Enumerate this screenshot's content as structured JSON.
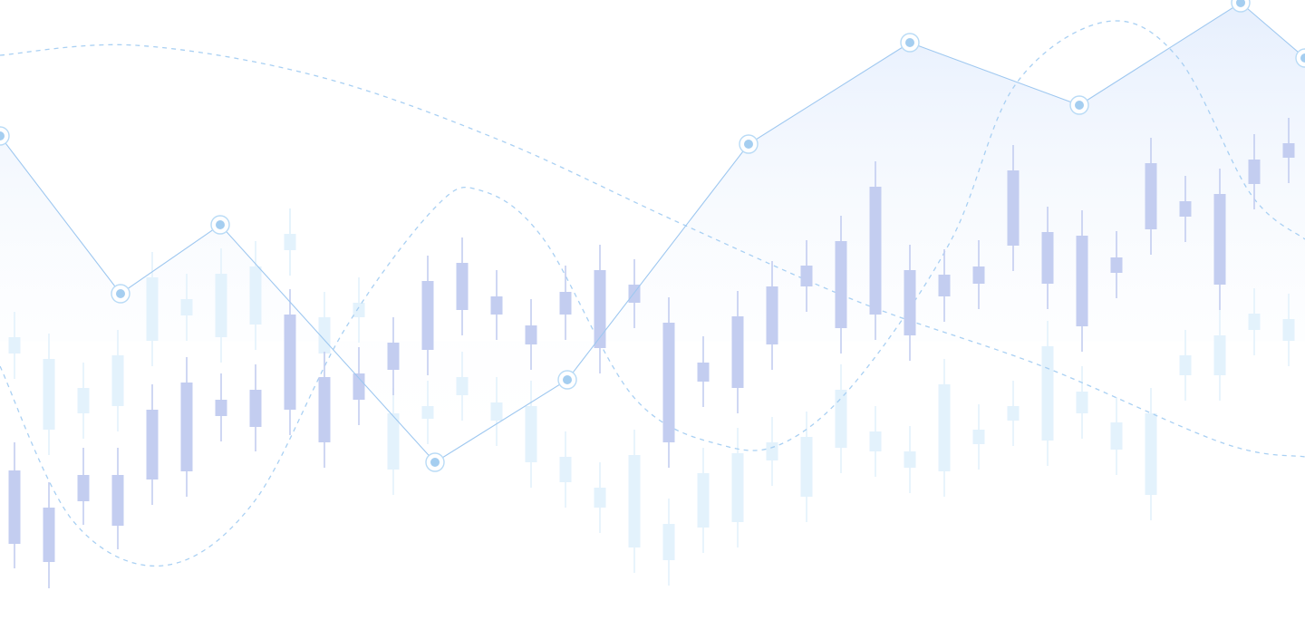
{
  "chart_data": {
    "type": "candlestick-line-composite",
    "title": "",
    "xlabel": "",
    "ylabel": "",
    "grid": false,
    "legend": "none",
    "colors": {
      "candle_primary": "#c3cdf0",
      "candle_secondary": "#e3f2fc",
      "line": "#9fc8f0",
      "area_top": "#e6effd",
      "dashed_curve": "#a9d0f3",
      "marker_fill": "#a5cef0",
      "marker_ring": "#b9dbf6"
    },
    "ylim": [
      0,
      684
    ],
    "line_series": {
      "x": [
        0,
        133,
        243,
        480,
        626,
        826,
        1004,
        1191,
        1369,
        1440
      ],
      "y": [
        534,
        360,
        436,
        174,
        265,
        525,
        637,
        568,
        681,
        620
      ]
    },
    "dashed_series_a": {
      "x": [
        0,
        150,
        350,
        550,
        750,
        950,
        1150,
        1350,
        1440
      ],
      "y": [
        623,
        634,
        600,
        530,
        438,
        350,
        280,
        195,
        180
      ]
    },
    "dashed_series_b": {
      "x": [
        0,
        80,
        180,
        280,
        380,
        480,
        530,
        600,
        700,
        800,
        870,
        950,
        1050,
        1120,
        1220,
        1300,
        1380,
        1440
      ],
      "y": [
        280,
        110,
        60,
        130,
        320,
        455,
        474,
        420,
        245,
        192,
        198,
        270,
        420,
        590,
        660,
        620,
        470,
        420
      ]
    },
    "candles_primary": [
      {
        "x": 16,
        "open": 165,
        "close": 84,
        "high": 196,
        "low": 57
      },
      {
        "x": 54,
        "open": 124,
        "close": 64,
        "high": 152,
        "low": 35
      },
      {
        "x": 92,
        "open": 160,
        "close": 131,
        "high": 190,
        "low": 105
      },
      {
        "x": 130,
        "open": 160,
        "close": 104,
        "high": 190,
        "low": 78
      },
      {
        "x": 168,
        "open": 232,
        "close": 155,
        "high": 260,
        "low": 127
      },
      {
        "x": 206,
        "open": 262,
        "close": 164,
        "high": 290,
        "low": 136
      },
      {
        "x": 244,
        "open": 243,
        "close": 225,
        "high": 272,
        "low": 197
      },
      {
        "x": 282,
        "open": 254,
        "close": 213,
        "high": 282,
        "low": 186
      },
      {
        "x": 320,
        "open": 337,
        "close": 232,
        "high": 365,
        "low": 204
      },
      {
        "x": 358,
        "open": 268,
        "close": 196,
        "high": 296,
        "low": 168
      },
      {
        "x": 396,
        "open": 272,
        "close": 243,
        "high": 301,
        "low": 215
      },
      {
        "x": 434,
        "open": 306,
        "close": 276,
        "high": 334,
        "low": 248
      },
      {
        "x": 472,
        "open": 374,
        "close": 298,
        "high": 402,
        "low": 270
      },
      {
        "x": 510,
        "open": 394,
        "close": 342,
        "high": 422,
        "low": 314
      },
      {
        "x": 548,
        "open": 357,
        "close": 337,
        "high": 386,
        "low": 309
      },
      {
        "x": 586,
        "open": 325,
        "close": 304,
        "high": 354,
        "low": 276
      },
      {
        "x": 624,
        "open": 362,
        "close": 337,
        "high": 391,
        "low": 309
      },
      {
        "x": 662,
        "open": 386,
        "close": 300,
        "high": 414,
        "low": 272
      },
      {
        "x": 700,
        "open": 370,
        "close": 350,
        "high": 398,
        "low": 322
      },
      {
        "x": 738,
        "open": 328,
        "close": 196,
        "high": 356,
        "low": 168
      },
      {
        "x": 776,
        "open": 284,
        "close": 263,
        "high": 313,
        "low": 235
      },
      {
        "x": 814,
        "open": 335,
        "close": 256,
        "high": 363,
        "low": 228
      },
      {
        "x": 852,
        "open": 368,
        "close": 304,
        "high": 396,
        "low": 276
      },
      {
        "x": 890,
        "open": 391,
        "close": 368,
        "high": 419,
        "low": 340
      },
      {
        "x": 928,
        "open": 418,
        "close": 322,
        "high": 446,
        "low": 294
      },
      {
        "x": 966,
        "open": 478,
        "close": 337,
        "high": 506,
        "low": 309
      },
      {
        "x": 1004,
        "open": 386,
        "close": 314,
        "high": 414,
        "low": 286
      },
      {
        "x": 1042,
        "open": 381,
        "close": 357,
        "high": 409,
        "low": 329
      },
      {
        "x": 1080,
        "open": 390,
        "close": 371,
        "high": 419,
        "low": 343
      },
      {
        "x": 1118,
        "open": 496,
        "close": 413,
        "high": 524,
        "low": 385
      },
      {
        "x": 1156,
        "open": 428,
        "close": 371,
        "high": 456,
        "low": 343
      },
      {
        "x": 1194,
        "open": 424,
        "close": 324,
        "high": 452,
        "low": 296
      },
      {
        "x": 1232,
        "open": 400,
        "close": 383,
        "high": 429,
        "low": 355
      },
      {
        "x": 1270,
        "open": 504,
        "close": 431,
        "high": 532,
        "low": 403
      },
      {
        "x": 1308,
        "open": 462,
        "close": 445,
        "high": 490,
        "low": 417
      },
      {
        "x": 1346,
        "open": 470,
        "close": 370,
        "high": 498,
        "low": 342
      },
      {
        "x": 1384,
        "open": 508,
        "close": 481,
        "high": 536,
        "low": 453
      },
      {
        "x": 1422,
        "open": 526,
        "close": 510,
        "high": 554,
        "low": 482
      }
    ],
    "candles_secondary": [
      {
        "x": 16,
        "open": 312,
        "close": 294,
        "high": 340,
        "low": 266
      },
      {
        "x": 54,
        "open": 288,
        "close": 210,
        "high": 316,
        "low": 182
      },
      {
        "x": 92,
        "open": 256,
        "close": 228,
        "high": 284,
        "low": 200
      },
      {
        "x": 130,
        "open": 292,
        "close": 236,
        "high": 320,
        "low": 208
      },
      {
        "x": 168,
        "open": 378,
        "close": 308,
        "high": 406,
        "low": 280
      },
      {
        "x": 206,
        "open": 354,
        "close": 336,
        "high": 382,
        "low": 308
      },
      {
        "x": 244,
        "open": 382,
        "close": 312,
        "high": 410,
        "low": 284
      },
      {
        "x": 282,
        "open": 390,
        "close": 326,
        "high": 418,
        "low": 298
      },
      {
        "x": 320,
        "open": 426,
        "close": 408,
        "high": 454,
        "low": 380
      },
      {
        "x": 358,
        "open": 334,
        "close": 294,
        "high": 362,
        "low": 266
      },
      {
        "x": 396,
        "open": 350,
        "close": 334,
        "high": 378,
        "low": 306
      },
      {
        "x": 434,
        "open": 228,
        "close": 166,
        "high": 256,
        "low": 138
      },
      {
        "x": 472,
        "open": 236,
        "close": 222,
        "high": 264,
        "low": 194
      },
      {
        "x": 510,
        "open": 268,
        "close": 248,
        "high": 296,
        "low": 220
      },
      {
        "x": 548,
        "open": 240,
        "close": 220,
        "high": 268,
        "low": 192
      },
      {
        "x": 586,
        "open": 236,
        "close": 174,
        "high": 264,
        "low": 146
      },
      {
        "x": 624,
        "open": 180,
        "close": 152,
        "high": 208,
        "low": 124
      },
      {
        "x": 662,
        "open": 146,
        "close": 124,
        "high": 174,
        "low": 96
      },
      {
        "x": 700,
        "open": 182,
        "close": 80,
        "high": 210,
        "low": 52
      },
      {
        "x": 738,
        "open": 106,
        "close": 66,
        "high": 134,
        "low": 38
      },
      {
        "x": 776,
        "open": 162,
        "close": 102,
        "high": 190,
        "low": 74
      },
      {
        "x": 814,
        "open": 184,
        "close": 108,
        "high": 212,
        "low": 80
      },
      {
        "x": 852,
        "open": 196,
        "close": 176,
        "high": 224,
        "low": 148
      },
      {
        "x": 890,
        "open": 202,
        "close": 136,
        "high": 230,
        "low": 108
      },
      {
        "x": 928,
        "open": 254,
        "close": 190,
        "high": 282,
        "low": 162
      },
      {
        "x": 966,
        "open": 208,
        "close": 186,
        "high": 236,
        "low": 158
      },
      {
        "x": 1004,
        "open": 186,
        "close": 168,
        "high": 214,
        "low": 140
      },
      {
        "x": 1042,
        "open": 260,
        "close": 164,
        "high": 288,
        "low": 136
      },
      {
        "x": 1080,
        "open": 210,
        "close": 194,
        "high": 238,
        "low": 166
      },
      {
        "x": 1118,
        "open": 236,
        "close": 220,
        "high": 264,
        "low": 192
      },
      {
        "x": 1156,
        "open": 302,
        "close": 198,
        "high": 330,
        "low": 170
      },
      {
        "x": 1194,
        "open": 252,
        "close": 228,
        "high": 280,
        "low": 200
      },
      {
        "x": 1232,
        "open": 218,
        "close": 188,
        "high": 246,
        "low": 160
      },
      {
        "x": 1270,
        "open": 228,
        "close": 138,
        "high": 256,
        "low": 110
      },
      {
        "x": 1308,
        "open": 292,
        "close": 270,
        "high": 320,
        "low": 242
      },
      {
        "x": 1346,
        "open": 314,
        "close": 270,
        "high": 342,
        "low": 242
      },
      {
        "x": 1384,
        "open": 338,
        "close": 320,
        "high": 366,
        "low": 292
      },
      {
        "x": 1422,
        "open": 332,
        "close": 308,
        "high": 360,
        "low": 280
      },
      {
        "x": 320,
        "open": 426,
        "close": 408,
        "high": 454,
        "low": 380
      }
    ]
  }
}
